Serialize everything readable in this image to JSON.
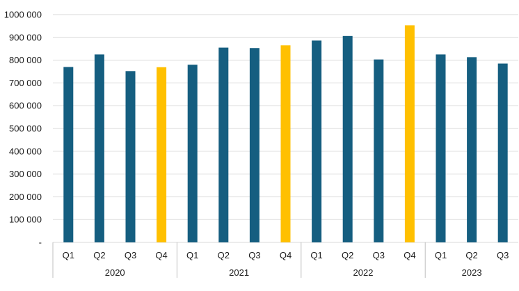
{
  "chart_data": {
    "type": "bar",
    "title": "",
    "xlabel": "",
    "ylabel": "",
    "ylim": [
      0,
      1000000
    ],
    "yticks": [
      "-",
      "100 000",
      "200 000",
      "300 000",
      "400 000",
      "500 000",
      "600 000",
      "700 000",
      "800 000",
      "900 000",
      "1000 000"
    ],
    "grid": true,
    "legend": "none",
    "groups": [
      {
        "label": "2020",
        "categories": [
          "Q1",
          "Q2",
          "Q3",
          "Q4"
        ],
        "values": [
          770000,
          825000,
          752000,
          769000
        ]
      },
      {
        "label": "2021",
        "categories": [
          "Q1",
          "Q2",
          "Q3",
          "Q4"
        ],
        "values": [
          780000,
          855000,
          853000,
          865000
        ]
      },
      {
        "label": "2022",
        "categories": [
          "Q1",
          "Q2",
          "Q3",
          "Q4"
        ],
        "values": [
          886000,
          906000,
          803000,
          953000
        ]
      },
      {
        "label": "2023",
        "categories": [
          "Q1",
          "Q2",
          "Q3"
        ],
        "values": [
          825000,
          813000,
          785000
        ]
      }
    ],
    "colors": {
      "default": "#155e80",
      "highlight_q4": "#ffc000"
    }
  }
}
